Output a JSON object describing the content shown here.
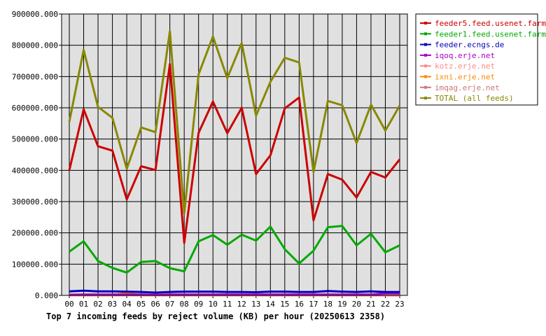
{
  "chart_data": {
    "type": "line",
    "caption": "Top 7 incoming feeds by reject volume (KB) per hour (20250613 2358)",
    "categories": [
      "00",
      "01",
      "02",
      "03",
      "04",
      "05",
      "06",
      "07",
      "08",
      "09",
      "10",
      "11",
      "12",
      "13",
      "14",
      "15",
      "16",
      "17",
      "18",
      "19",
      "20",
      "21",
      "22",
      "23"
    ],
    "ylim": [
      0,
      900000
    ],
    "yticks": [
      0,
      100000,
      200000,
      300000,
      400000,
      500000,
      600000,
      700000,
      800000,
      900000
    ],
    "ytick_labels": [
      "0.000",
      "100000.000",
      "200000.000",
      "300000.000",
      "400000.000",
      "500000.000",
      "600000.000",
      "700000.000",
      "800000.000",
      "900000.000"
    ],
    "grid": true,
    "legend_position": "right",
    "plot_background": "#e0e0e0",
    "series": [
      {
        "name": "feeder5.feed.usenet.farm",
        "color": "#cc0000",
        "values": [
          400000,
          595000,
          477000,
          463000,
          307000,
          413000,
          401000,
          740000,
          168000,
          520000,
          620000,
          519000,
          600000,
          388000,
          448000,
          598000,
          633000,
          240000,
          388000,
          370000,
          313000,
          395000,
          377000,
          435000
        ]
      },
      {
        "name": "feeder1.feed.usenet.farm",
        "color": "#00aa00",
        "values": [
          140000,
          173000,
          110000,
          88000,
          73000,
          107000,
          110000,
          87000,
          77000,
          173000,
          193000,
          162000,
          194000,
          175000,
          220000,
          148000,
          102000,
          143000,
          218000,
          222000,
          160000,
          197000,
          138000,
          160000
        ]
      },
      {
        "name": "feeder.ecngs.de",
        "color": "#0000bb",
        "values": [
          13000,
          15000,
          13000,
          13000,
          12000,
          11000,
          9000,
          11000,
          12000,
          12000,
          12000,
          11000,
          11000,
          10000,
          12000,
          12000,
          11000,
          11000,
          14000,
          12000,
          11000,
          13000,
          11000,
          11000
        ]
      },
      {
        "name": "iqoq.erje.net",
        "color": "#aa00cc",
        "values": [
          2000,
          3000,
          3000,
          3000,
          3000,
          3000,
          2000,
          3000,
          3000,
          3000,
          3000,
          3000,
          3000,
          3000,
          3000,
          3000,
          3000,
          3000,
          3000,
          3000,
          3000,
          3000,
          6000,
          6000
        ]
      },
      {
        "name": "kotz.erje.net",
        "color": "#ff8888",
        "values": [
          500,
          500,
          500,
          500,
          1000,
          500,
          500,
          500,
          500,
          500,
          500,
          500,
          500,
          500,
          500,
          500,
          500,
          500,
          500,
          500,
          500,
          500,
          500,
          500
        ]
      },
      {
        "name": "ixni.erje.net",
        "color": "#ff8800",
        "values": [
          500,
          500,
          500,
          500,
          8000,
          500,
          500,
          500,
          500,
          500,
          500,
          500,
          500,
          500,
          500,
          500,
          500,
          500,
          500,
          500,
          500,
          500,
          500,
          500
        ]
      },
      {
        "name": "imqag.erje.net",
        "color": "#cc7777",
        "values": [
          500,
          500,
          500,
          500,
          500,
          500,
          500,
          500,
          500,
          500,
          500,
          500,
          500,
          500,
          500,
          500,
          500,
          500,
          500,
          500,
          500,
          500,
          500,
          500
        ]
      },
      {
        "name": "TOTAL (all feeds)",
        "color": "#888800",
        "values": [
          555000,
          785000,
          603000,
          568000,
          405000,
          537000,
          522000,
          845000,
          262000,
          707000,
          828000,
          695000,
          807000,
          575000,
          683000,
          760000,
          745000,
          395000,
          622000,
          608000,
          487000,
          610000,
          527000,
          607000
        ]
      }
    ]
  }
}
